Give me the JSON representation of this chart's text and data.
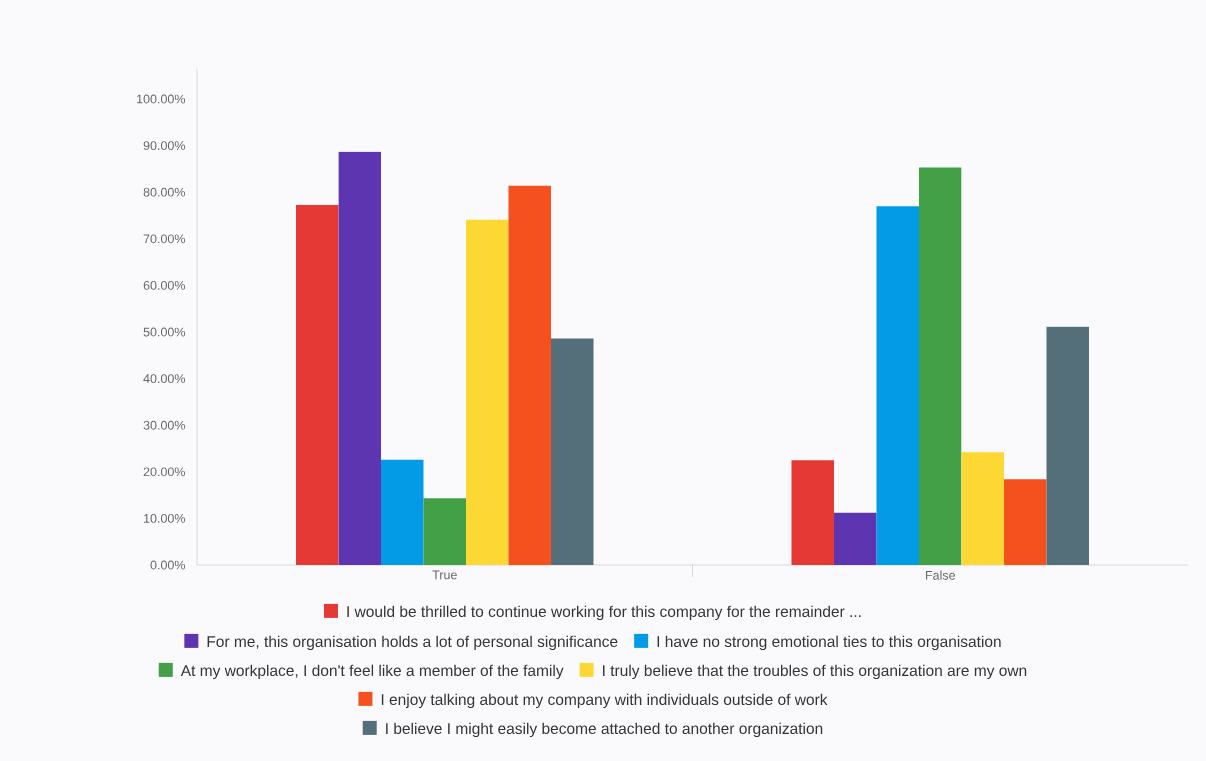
{
  "chart_data": {
    "type": "bar",
    "categories": [
      "True",
      "False"
    ],
    "series": [
      {
        "name": "I would be thrilled to continue working for this company for the remainder ...",
        "color": "#e53935",
        "values": [
          77.3,
          22.5
        ]
      },
      {
        "name": "For me, this organisation holds a lot of personal significance",
        "color": "#5e35b1",
        "values": [
          88.7,
          11.2
        ]
      },
      {
        "name": "I have no strong emotional ties to this organisation",
        "color": "#039be5",
        "values": [
          22.6,
          77.0
        ]
      },
      {
        "name": "At my workplace, I don't feel like a member of the family",
        "color": "#43a047",
        "values": [
          14.3,
          85.3
        ]
      },
      {
        "name": "I truly believe that the troubles of this organization are my own",
        "color": "#fdd835",
        "values": [
          74.1,
          24.2
        ]
      },
      {
        "name": "I enjoy talking about my company with individuals outside of work",
        "color": "#f4511e",
        "values": [
          81.4,
          18.4
        ]
      },
      {
        "name": "I believe I might easily become attached to another organization",
        "color": "#546e7a",
        "values": [
          48.6,
          51.1
        ]
      }
    ],
    "ylim": [
      0,
      106.5
    ],
    "yticks": [
      {
        "value": 0,
        "label": "0.00%"
      },
      {
        "value": 10,
        "label": "10.00%"
      },
      {
        "value": 20,
        "label": "20.00%"
      },
      {
        "value": 30,
        "label": "30.00%"
      },
      {
        "value": 40,
        "label": "40.00%"
      },
      {
        "value": 50,
        "label": "50.00%"
      },
      {
        "value": 60,
        "label": "60.00%"
      },
      {
        "value": 70,
        "label": "70.00%"
      },
      {
        "value": 80,
        "label": "80.00%"
      },
      {
        "value": 90,
        "label": "90.00%"
      },
      {
        "value": 100,
        "label": "100.00%"
      }
    ],
    "grid": false,
    "legend": "bottom"
  }
}
